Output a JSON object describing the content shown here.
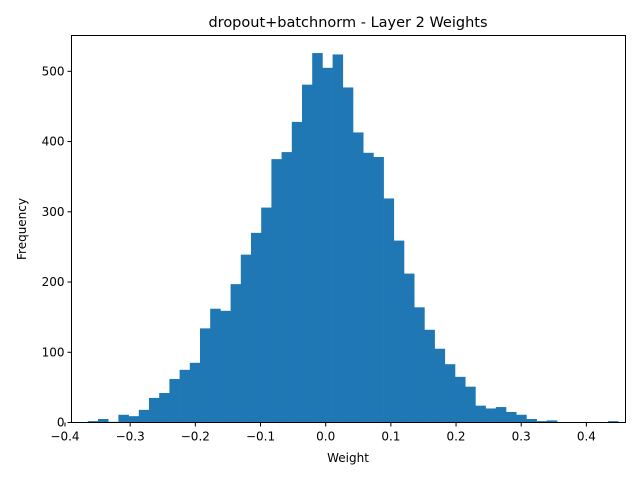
{
  "chart_data": {
    "type": "bar",
    "title": "dropout+batchnorm - Layer 2 Weights",
    "xlabel": "Weight",
    "ylabel": "Frequency",
    "xlim": [
      -0.39,
      0.46
    ],
    "ylim": [
      0,
      551
    ],
    "xticks": [
      -0.4,
      -0.3,
      -0.2,
      -0.1,
      0.0,
      0.1,
      0.2,
      0.3,
      0.4
    ],
    "xtick_labels": [
      "−0.4",
      "−0.3",
      "−0.2",
      "−0.1",
      "0.0",
      "0.1",
      "0.2",
      "0.3",
      "0.4"
    ],
    "yticks": [
      0,
      100,
      200,
      300,
      400,
      500
    ],
    "ytick_labels": [
      "0",
      "100",
      "200",
      "300",
      "400",
      "500"
    ],
    "grid": false,
    "bar_color": "#1f77b4",
    "bin_start": -0.365,
    "bin_width": 0.01565,
    "values": [
      2,
      5,
      1,
      11,
      9,
      18,
      35,
      42,
      62,
      75,
      85,
      134,
      162,
      159,
      197,
      239,
      270,
      306,
      375,
      385,
      428,
      481,
      526,
      505,
      524,
      477,
      413,
      384,
      378,
      319,
      259,
      212,
      164,
      132,
      105,
      83,
      65,
      51,
      24,
      20,
      22,
      15,
      11,
      5,
      2,
      3,
      0,
      0,
      0,
      0,
      0,
      2
    ]
  }
}
